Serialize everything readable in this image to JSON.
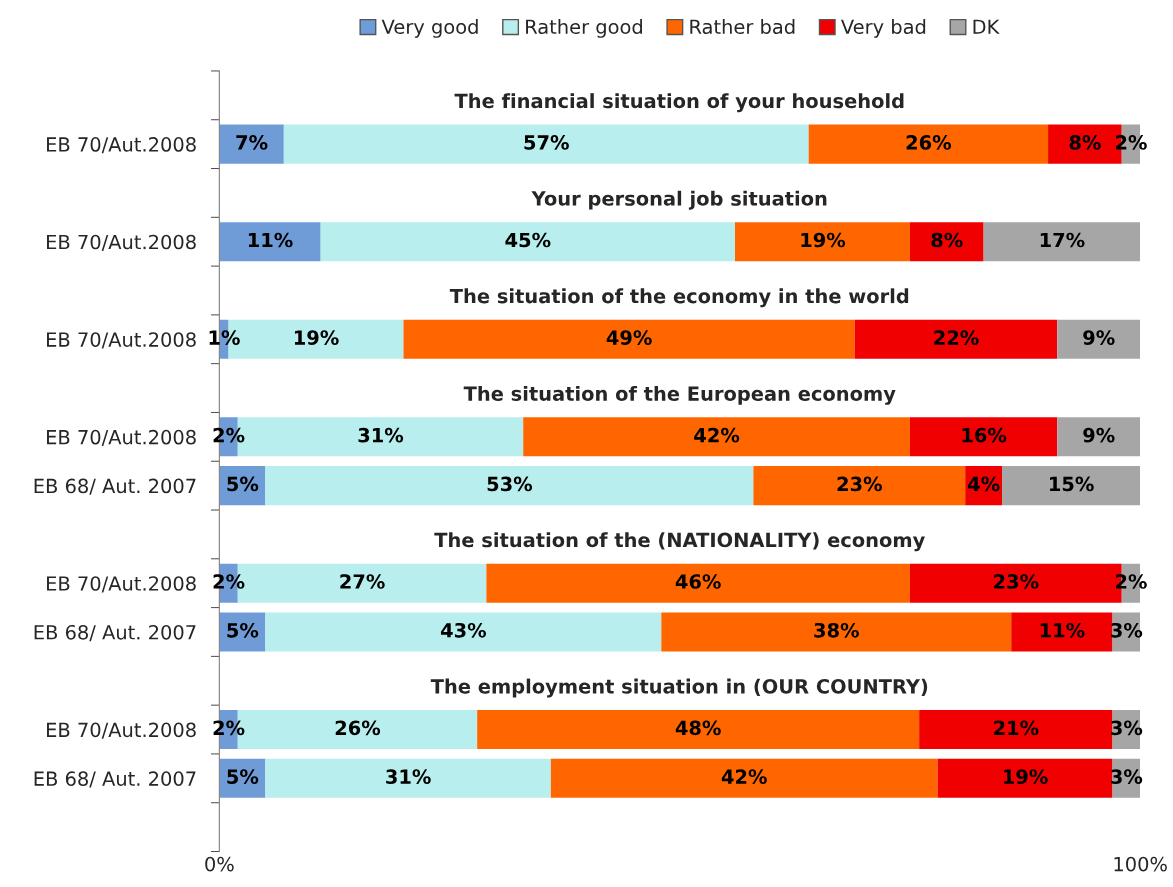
{
  "chart_data": {
    "type": "bar",
    "orientation": "horizontal",
    "stacked": true,
    "legend": "top",
    "grid": false,
    "categories": [
      null,
      "EB 70/Aut.2008",
      null,
      "EB 70/Aut.2008",
      null,
      "EB 70/Aut.2008",
      null,
      "EB 70/Aut.2008",
      "EB 68/ Aut. 2007",
      null,
      "EB 70/Aut.2008",
      "EB 68/ Aut. 2007",
      null,
      "EB 70/Aut.2008",
      "EB 68/ Aut. 2007",
      null
    ],
    "xlim": [
      0,
      100
    ],
    "xticks": [
      {
        "value": 0,
        "label": "0%"
      },
      {
        "value": 100,
        "label": "100%"
      }
    ],
    "annotations": [
      "The financial situation of your household",
      "Your personal job situation",
      "The situation of the economy in the world",
      "The situation of the European economy",
      "The situation of the (NATIONALITY) economy",
      "The employment situation in (OUR COUNTRY)"
    ],
    "series": [
      {
        "name": "Very good",
        "color": "#6f9bd6",
        "values": [
          null,
          7,
          null,
          11,
          null,
          1,
          null,
          2,
          5,
          null,
          2,
          5,
          null,
          2,
          5,
          null
        ],
        "value_labels": [
          null,
          "7%",
          null,
          "11%",
          null,
          "1%",
          null,
          "2%",
          "5%",
          null,
          "2%",
          "5%",
          null,
          "2%",
          "5%",
          null
        ]
      },
      {
        "name": "Rather good",
        "color": "#b9eeee",
        "values": [
          null,
          57,
          null,
          45,
          null,
          19,
          null,
          31,
          53,
          null,
          27,
          43,
          null,
          26,
          31,
          null
        ],
        "value_labels": [
          null,
          "57%",
          null,
          "45%",
          null,
          "19%",
          null,
          "31%",
          "53%",
          null,
          "27%",
          "43%",
          null,
          "26%",
          "31%",
          null
        ]
      },
      {
        "name": "Rather bad",
        "color": "#ff6600",
        "values": [
          null,
          26,
          null,
          19,
          null,
          49,
          null,
          42,
          23,
          null,
          46,
          38,
          null,
          48,
          42,
          null
        ],
        "value_labels": [
          null,
          "26%",
          null,
          "19%",
          null,
          "49%",
          null,
          "42%",
          "23%",
          null,
          "46%",
          "38%",
          null,
          "48%",
          "42%",
          null
        ]
      },
      {
        "name": "Very bad",
        "color": "#f00000",
        "values": [
          null,
          8,
          null,
          8,
          null,
          22,
          null,
          16,
          4,
          null,
          23,
          11,
          null,
          21,
          19,
          null
        ],
        "value_labels": [
          null,
          "8%",
          null,
          "8%",
          null,
          "22%",
          null,
          "16%",
          "4%",
          null,
          "23%",
          "11%",
          null,
          "21%",
          "19%",
          null
        ]
      },
      {
        "name": "DK",
        "color": "#a6a6a6",
        "values": [
          null,
          2,
          null,
          17,
          null,
          9,
          null,
          9,
          15,
          null,
          2,
          3,
          null,
          3,
          3,
          null
        ],
        "value_labels": [
          null,
          "2%",
          null,
          "17%",
          null,
          "9%",
          null,
          "9%",
          "15%",
          null,
          "2%",
          "3%",
          null,
          "3%",
          "3%",
          null
        ]
      }
    ]
  }
}
